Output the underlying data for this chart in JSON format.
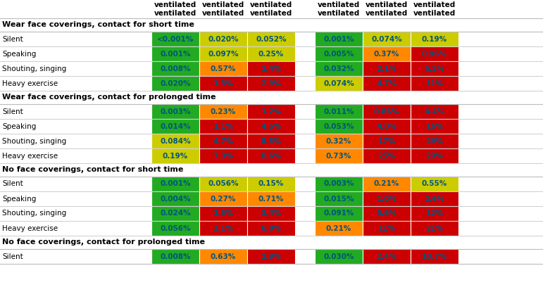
{
  "sections": [
    {
      "title": "Wear face coverings, contact for short time",
      "rows": [
        {
          "label": "Silent",
          "vals1": [
            "<0.001%",
            "0.020%",
            "0.052%"
          ],
          "vals2": [
            "0.001%",
            "0.074%",
            "0.19%"
          ],
          "cols1": [
            "#22aa22",
            "#cccc00",
            "#cccc00"
          ],
          "cols2": [
            "#22aa22",
            "#cccc00",
            "#cccc00"
          ]
        },
        {
          "label": "Speaking",
          "vals1": [
            "0.001%",
            "0.097%",
            "0.25%"
          ],
          "vals2": [
            "0.005%",
            "0.37%",
            "0.96%"
          ],
          "cols1": [
            "#22aa22",
            "#cccc00",
            "#cccc00"
          ],
          "cols2": [
            "#22aa22",
            "#ff8800",
            "#cc0000"
          ]
        },
        {
          "label": "Shouting, singing",
          "vals1": [
            "0.008%",
            "0.57%",
            "1.4%"
          ],
          "vals2": [
            "0.032%",
            "2.1%",
            "5.2%"
          ],
          "cols1": [
            "#22aa22",
            "#ff8800",
            "#cc0000"
          ],
          "cols2": [
            "#22aa22",
            "#cc0000",
            "#cc0000"
          ]
        },
        {
          "label": "Heavy exercise",
          "vals1": [
            "0.020%",
            "1.3%",
            "2.9%"
          ],
          "vals2": [
            "0.074%",
            "4.7%",
            "11%"
          ],
          "cols1": [
            "#22aa22",
            "#cc0000",
            "#cc0000"
          ],
          "cols2": [
            "#cccc00",
            "#cc0000",
            "#cc0000"
          ]
        }
      ]
    },
    {
      "title": "Wear face coverings, contact for prolonged time",
      "rows": [
        {
          "label": "Silent",
          "vals1": [
            "0.003%",
            "0.23%",
            "1.2%"
          ],
          "vals2": [
            "0.011%",
            "0.86%",
            "4.4%"
          ],
          "cols1": [
            "#22aa22",
            "#ff8800",
            "#cc0000"
          ],
          "cols2": [
            "#22aa22",
            "#cc0000",
            "#cc0000"
          ]
        },
        {
          "label": "Speaking",
          "vals1": [
            "0.014%",
            "1.1%",
            "4.5%"
          ],
          "vals2": [
            "0.053%",
            "4.0%",
            "16%"
          ],
          "cols1": [
            "#22aa22",
            "#cc0000",
            "#cc0000"
          ],
          "cols2": [
            "#22aa22",
            "#cc0000",
            "#cc0000"
          ]
        },
        {
          "label": "Shouting, singing",
          "vals1": [
            "0.084%",
            "4.7%",
            "8.5%"
          ],
          "vals2": [
            "0.32%",
            "17%",
            "29%"
          ],
          "cols1": [
            "#cccc00",
            "#cc0000",
            "#cc0000"
          ],
          "cols2": [
            "#ff8800",
            "#cc0000",
            "#cc0000"
          ]
        },
        {
          "label": "Heavy exercise",
          "vals1": [
            "0.19%",
            "7.3%",
            "8.6%"
          ],
          "vals2": [
            "0.73%",
            "25%",
            "29%"
          ],
          "cols1": [
            "#cccc00",
            "#cc0000",
            "#cc0000"
          ],
          "cols2": [
            "#ff8800",
            "#cc0000",
            "#cc0000"
          ]
        }
      ]
    },
    {
      "title": "No face coverings, contact for short time",
      "rows": [
        {
          "label": "Silent",
          "vals1": [
            "0.001%",
            "0.056%",
            "0.15%"
          ],
          "vals2": [
            "0.003%",
            "0.21%",
            "0.55%"
          ],
          "cols1": [
            "#22aa22",
            "#cccc00",
            "#cccc00"
          ],
          "cols2": [
            "#22aa22",
            "#ff8800",
            "#cccc00"
          ]
        },
        {
          "label": "Speaking",
          "vals1": [
            "0.004%",
            "0.27%",
            "0.71%"
          ],
          "vals2": [
            "0.015%",
            "1.0%",
            "2.6%"
          ],
          "cols1": [
            "#22aa22",
            "#ff8800",
            "#ff8800"
          ],
          "cols2": [
            "#22aa22",
            "#cc0000",
            "#cc0000"
          ]
        },
        {
          "label": "Shouting, singing",
          "vals1": [
            "0.024%",
            "1.5%",
            "3.4%"
          ],
          "vals2": [
            "0.091%",
            "5.6%",
            "12%"
          ],
          "cols1": [
            "#22aa22",
            "#cc0000",
            "#cc0000"
          ],
          "cols2": [
            "#22aa22",
            "#cc0000",
            "#cc0000"
          ]
        },
        {
          "label": "Heavy exercise",
          "vals1": [
            "0.056%",
            "3.1%",
            "6.0%"
          ],
          "vals2": [
            "0.21%",
            "11%",
            "21%"
          ],
          "cols1": [
            "#22aa22",
            "#cc0000",
            "#cc0000"
          ],
          "cols2": [
            "#ff8800",
            "#cc0000",
            "#cc0000"
          ]
        }
      ]
    },
    {
      "title": "No face coverings, contact for prolonged time",
      "rows": [
        {
          "label": "Silent",
          "vals1": [
            "0.008%",
            "0.63%",
            "2.9%"
          ],
          "vals2": [
            "0.030%",
            "2.4%",
            "10.7%"
          ],
          "cols1": [
            "#22aa22",
            "#ff8800",
            "#cc0000"
          ],
          "cols2": [
            "#22aa22",
            "#cc0000",
            "#cc0000"
          ]
        }
      ]
    }
  ],
  "header_line1": [
    "ventilated",
    "ventilated",
    "ventilated",
    "",
    "ventilated",
    "ventilated",
    "ventilated"
  ],
  "text_color": "#005580",
  "figw": 7.71,
  "figh": 4.25,
  "dpi": 100
}
